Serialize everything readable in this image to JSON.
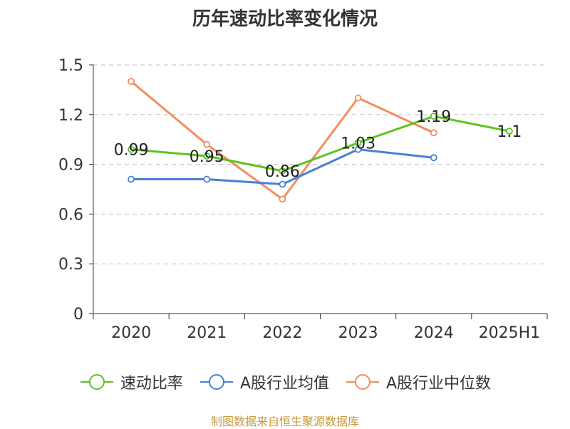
{
  "chart_data": {
    "type": "line",
    "title": "历年速动比率变化情况",
    "categories": [
      "2020",
      "2021",
      "2022",
      "2023",
      "2024",
      "2025H1"
    ],
    "ylim": [
      0,
      1.5
    ],
    "yticks": [
      "0",
      "0.3",
      "0.6",
      "0.9",
      "1.2",
      "1.5"
    ],
    "grid": true,
    "legend_position": "bottom",
    "series": [
      {
        "name": "速动比率",
        "color": "#5cc31f",
        "values": [
          0.99,
          0.95,
          0.86,
          1.03,
          1.19,
          1.1
        ],
        "labels": [
          "0.99",
          "0.95",
          "0.86",
          "1.03",
          "1.19",
          "1.1"
        ]
      },
      {
        "name": "A股行业均值",
        "color": "#4a7fd8",
        "values": [
          0.81,
          0.81,
          0.78,
          0.99,
          0.94,
          null
        ]
      },
      {
        "name": "A股行业中位数",
        "color": "#f28e5c",
        "values": [
          1.4,
          1.02,
          0.69,
          1.3,
          1.09,
          null
        ]
      }
    ]
  },
  "source": "制图数据来自恒生聚源数据库"
}
